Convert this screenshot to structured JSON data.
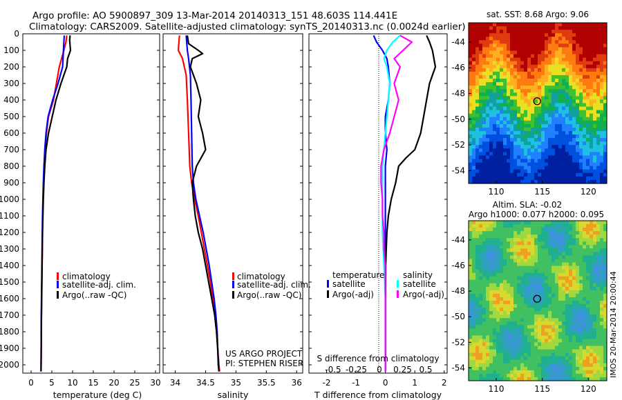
{
  "header": {
    "line1": "Argo profile: AO 5900897_309 13-Mar-2014 20140313_151 48.603S 114.441E",
    "line2": "Climatology: CARS2009. Satellite-adjusted climatology: synTS_20140313.nc (0.0024d earlier)"
  },
  "credits": {
    "project": "US ARGO PROJECT",
    "pi": "PI: STEPHEN RISER"
  },
  "side_note": "IMOS 20-Mar-2014 20:00:44",
  "colors": {
    "climatology": "#ff0000",
    "satellite": "#0000ff",
    "argo": "#000000",
    "sal_satellite": "#00ffff",
    "sal_argo": "#ff00ff"
  },
  "chart_data": [
    {
      "type": "line",
      "xlabel": "temperature (deg C)",
      "xlim": [
        -2,
        31
      ],
      "xticks": [
        0,
        5,
        10,
        15,
        20,
        25,
        30
      ],
      "ylim": [
        2050,
        0
      ],
      "yticks": [
        0,
        100,
        200,
        300,
        400,
        500,
        600,
        700,
        800,
        900,
        1000,
        1100,
        1200,
        1300,
        1400,
        1500,
        1600,
        1700,
        1800,
        1900,
        2000
      ],
      "legend": [
        "climatology",
        "satellite-adj. clim.",
        "Argo(..raw -QC)"
      ],
      "legend_placement": "lower-center",
      "series": [
        {
          "name": "climatology",
          "color": "red",
          "x": [
            8.6,
            8.4,
            7.9,
            6.8,
            5.4,
            4.2,
            3.7,
            3.4,
            3.2,
            3.0,
            2.9,
            2.8,
            2.75,
            2.7,
            2.65,
            2.6,
            2.55,
            2.5,
            2.45,
            2.45,
            2.4
          ],
          "y": [
            10,
            50,
            100,
            200,
            400,
            500,
            600,
            700,
            800,
            900,
            1000,
            1100,
            1200,
            1300,
            1400,
            1500,
            1600,
            1700,
            1800,
            1900,
            2040
          ]
        },
        {
          "name": "satellite-adj. clim.",
          "color": "blue",
          "x": [
            8.0,
            7.9,
            7.8,
            7.6,
            6.5,
            5.2,
            4.1,
            3.6,
            3.3,
            3.1,
            2.95,
            2.85,
            2.75,
            2.7,
            2.65,
            2.6,
            2.55,
            2.5,
            2.45,
            2.45,
            2.4
          ],
          "y": [
            10,
            50,
            100,
            200,
            300,
            400,
            500,
            600,
            700,
            800,
            900,
            1000,
            1100,
            1200,
            1300,
            1400,
            1500,
            1600,
            1700,
            1800,
            2040
          ]
        },
        {
          "name": "Argo(..raw -QC)",
          "color": "black",
          "x": [
            9.4,
            9.3,
            9.5,
            8.8,
            8.6,
            7.2,
            6.0,
            5.1,
            4.2,
            3.6,
            3.3,
            3.1,
            2.95,
            2.85,
            2.75,
            2.7,
            2.65,
            2.6,
            2.55,
            2.5,
            2.45,
            2.4
          ],
          "y": [
            10,
            40,
            100,
            150,
            200,
            300,
            400,
            500,
            600,
            700,
            800,
            900,
            1000,
            1100,
            1200,
            1300,
            1400,
            1500,
            1600,
            1700,
            1800,
            2040
          ]
        }
      ]
    },
    {
      "type": "line",
      "xlabel": "salinity",
      "xlim": [
        33.8,
        36.1
      ],
      "xticks": [
        34,
        34.5,
        35,
        35.5,
        36
      ],
      "ylim": [
        2050,
        0
      ],
      "legend": [
        "climatology",
        "satellite-adj. clim.",
        "Argo(..raw -QC)"
      ],
      "legend_placement": "lower-center",
      "series": [
        {
          "name": "climatology",
          "color": "red",
          "x": [
            34.07,
            34.05,
            34.12,
            34.18,
            34.2,
            34.22,
            34.24,
            34.27,
            34.32,
            34.38,
            34.43,
            34.48,
            34.53,
            34.58,
            34.62,
            34.65,
            34.68,
            34.7,
            34.71,
            34.72,
            34.73
          ],
          "y": [
            10,
            100,
            150,
            250,
            400,
            600,
            800,
            900,
            1000,
            1100,
            1200,
            1300,
            1400,
            1500,
            1600,
            1700,
            1800,
            1900,
            1950,
            2000,
            2040
          ]
        },
        {
          "name": "satellite-adj. clim.",
          "color": "blue",
          "x": [
            34.18,
            34.2,
            34.22,
            34.25,
            34.26,
            34.27,
            34.28,
            34.3,
            34.34,
            34.4,
            34.46,
            34.51,
            34.56,
            34.6,
            34.64,
            34.67,
            34.69,
            34.7,
            34.71,
            34.72
          ],
          "y": [
            10,
            100,
            150,
            250,
            400,
            600,
            800,
            900,
            1000,
            1100,
            1200,
            1300,
            1400,
            1500,
            1600,
            1700,
            1800,
            1900,
            2000,
            2040
          ]
        },
        {
          "name": "Argo(..raw -QC)",
          "color": "black",
          "x": [
            34.2,
            34.22,
            34.38,
            34.45,
            34.28,
            34.25,
            34.3,
            34.35,
            34.42,
            34.38,
            34.45,
            34.5,
            34.35,
            34.28,
            34.3,
            34.33,
            34.38,
            34.45,
            34.5,
            34.55,
            34.6,
            34.65,
            34.68,
            34.7,
            34.71,
            34.72
          ],
          "y": [
            10,
            60,
            100,
            120,
            150,
            200,
            250,
            300,
            400,
            500,
            600,
            700,
            800,
            900,
            1000,
            1100,
            1200,
            1300,
            1400,
            1500,
            1600,
            1700,
            1800,
            1900,
            2000,
            2040
          ]
        }
      ]
    },
    {
      "type": "line",
      "xlabel": "T difference from climatology",
      "xlabel_top": "S difference from climatology",
      "xlim": [
        -2.6,
        2.1
      ],
      "xticks": [
        -2,
        -1,
        0,
        1,
        2
      ],
      "xticks_top_labels": [
        "-0.5",
        "-0.25",
        "0",
        "0.25",
        "0.5"
      ],
      "ylim": [
        2050,
        0
      ],
      "legend": [
        "temperature",
        "satellite",
        "Argo(-adj)",
        "salinity",
        "satellite",
        "Argo(-adj)"
      ],
      "legend_placement": "lower-center",
      "series": [
        {
          "name": "satellite",
          "color": "blue",
          "group": "temperature",
          "x": [
            -0.4,
            -0.3,
            -0.1,
            0.05,
            0.1,
            0.15,
            0.1,
            0.0,
            0.0,
            0.05,
            0.0,
            0.0,
            0.0,
            0.0,
            0.0,
            0.0,
            0.0,
            0.0
          ],
          "y": [
            10,
            50,
            100,
            150,
            200,
            300,
            400,
            500,
            600,
            700,
            800,
            1000,
            1200,
            1400,
            1600,
            1800,
            2000,
            2040
          ]
        },
        {
          "name": "Argo(-adj)",
          "color": "black",
          "group": "temperature",
          "x": [
            1.4,
            1.5,
            1.6,
            1.7,
            1.6,
            1.5,
            1.4,
            1.3,
            1.2,
            1.0,
            0.7,
            0.45,
            0.35,
            0.2,
            0.1,
            0.05,
            0.03,
            0.01,
            0.0,
            0.0,
            0.0
          ],
          "y": [
            10,
            50,
            100,
            200,
            250,
            300,
            400,
            500,
            600,
            700,
            750,
            800,
            900,
            1000,
            1100,
            1200,
            1300,
            1400,
            1600,
            1800,
            2040
          ]
        },
        {
          "name": "satellite",
          "color": "cyan",
          "group": "salinity",
          "x": [
            0.5,
            0.25,
            0.05,
            -0.05,
            0.05,
            0.15,
            0.1,
            0.05,
            0.0,
            -0.05,
            -0.1,
            -0.1,
            -0.1,
            -0.05,
            0.0,
            0.0,
            0.0,
            0.0
          ],
          "y": [
            10,
            50,
            100,
            150,
            200,
            300,
            400,
            500,
            600,
            700,
            800,
            1000,
            1200,
            1400,
            1600,
            1800,
            2000,
            2040
          ]
        },
        {
          "name": "Argo(-adj)",
          "color": "magenta",
          "group": "salinity",
          "x": [
            0.5,
            0.9,
            0.6,
            0.3,
            0.5,
            0.3,
            0.45,
            0.3,
            0.15,
            -0.05,
            -0.15,
            -0.15,
            -0.1,
            -0.1,
            -0.05,
            -0.05,
            0.0,
            0.0,
            0.0
          ],
          "y": [
            10,
            50,
            100,
            150,
            200,
            300,
            400,
            500,
            600,
            700,
            800,
            900,
            1000,
            1100,
            1200,
            1300,
            1400,
            1800,
            2040
          ]
        }
      ]
    },
    {
      "type": "heatmap",
      "title": "sat. SST: 8.68 Argo: 9.06",
      "xlim": [
        107,
        122
      ],
      "ylim": [
        -55,
        -42.5
      ],
      "xticks": [
        110,
        115,
        120
      ],
      "yticks": [
        -44,
        -46,
        -48,
        -50,
        -52,
        -54
      ],
      "marker": [
        114.441,
        -48.603
      ]
    },
    {
      "type": "heatmap",
      "title": "Altim. SLA: -0.02",
      "subtitle": "Argo h1000: 0.077 h2000: 0.095",
      "xlim": [
        107,
        122
      ],
      "ylim": [
        -55,
        -42.5
      ],
      "xticks": [
        110,
        115,
        120
      ],
      "yticks": [
        -44,
        -46,
        -48,
        -50,
        -52,
        -54
      ],
      "marker": [
        114.441,
        -48.603
      ]
    }
  ]
}
